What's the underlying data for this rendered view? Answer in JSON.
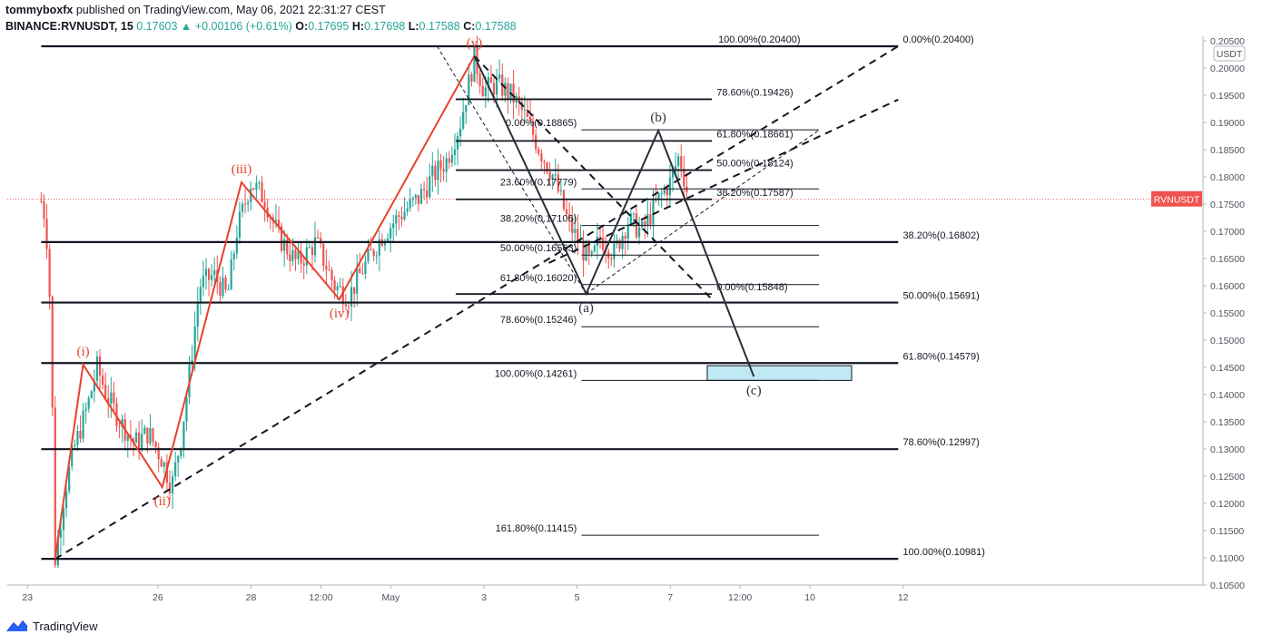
{
  "header": {
    "author": "tommyboxfx",
    "published": "published on TradingView.com, May 06, 2021 22:31:27 CEST",
    "symbol": "BINANCE:RVNUSDT, 15",
    "last": "0.17603",
    "change_arrow": "▲",
    "change": "+0.00106 (+0.61%)",
    "o_label": "O:",
    "o": "0.17695",
    "h_label": "H:",
    "h": "0.17698",
    "l_label": "L:",
    "l": "0.17588",
    "c_label": "C:",
    "c": "0.17588"
  },
  "footer": {
    "brand": "TradingView",
    "icon": "tradingview-logo-icon"
  },
  "colors": {
    "up": "#26a69a",
    "down": "#ef5350",
    "wave": "#e8412c",
    "price_tag": "#ef5350",
    "box": "#bfe9f3"
  },
  "chart_data": {
    "type": "line",
    "title": "BINANCE:RVNUSDT, 15",
    "currency": "USDT",
    "current_price_label": "RVNUSDT",
    "current_price": 0.17588,
    "ylim": [
      0.105,
      0.205
    ],
    "y_ticks": [
      0.105,
      0.11,
      0.115,
      0.12,
      0.125,
      0.13,
      0.135,
      0.14,
      0.145,
      0.15,
      0.155,
      0.16,
      0.165,
      0.17,
      0.175,
      0.18,
      0.185,
      0.19,
      0.195,
      0.2,
      0.205
    ],
    "y_tick_labels": [
      "0.10500",
      "0.11000",
      "0.11500",
      "0.12000",
      "0.12500",
      "0.13000",
      "0.13500",
      "0.14000",
      "0.14500",
      "0.15000",
      "0.15500",
      "0.16000",
      "0.16500",
      "0.17000",
      "0.17500",
      "0.18000",
      "0.18500",
      "0.19000",
      "0.19500",
      "0.20000",
      "0.20500"
    ],
    "x_tick_labels": [
      "23",
      "26",
      "28",
      "12:00",
      "May",
      "3",
      "5",
      "7",
      "12:00",
      "10",
      "12"
    ],
    "x_tick_positions": [
      0.2,
      3.0,
      5.0,
      6.5,
      8.0,
      10.0,
      12.0,
      14.0,
      15.5,
      17.0,
      19.0
    ],
    "price_path": [
      [
        0.3,
        0.1755
      ],
      [
        0.4,
        0.172
      ],
      [
        0.5,
        0.155
      ],
      [
        0.6,
        0.1098
      ],
      [
        0.8,
        0.122
      ],
      [
        1.0,
        0.13
      ],
      [
        1.3,
        0.138
      ],
      [
        1.5,
        0.145
      ],
      [
        1.7,
        0.14
      ],
      [
        2.0,
        0.135
      ],
      [
        2.3,
        0.131
      ],
      [
        2.6,
        0.133
      ],
      [
        2.9,
        0.128
      ],
      [
        3.1,
        0.123
      ],
      [
        3.3,
        0.132
      ],
      [
        3.5,
        0.145
      ],
      [
        3.7,
        0.16
      ],
      [
        4.0,
        0.162
      ],
      [
        4.3,
        0.158
      ],
      [
        4.5,
        0.17
      ],
      [
        4.8,
        0.179
      ],
      [
        5.1,
        0.176
      ],
      [
        5.4,
        0.169
      ],
      [
        5.8,
        0.164
      ],
      [
        6.2,
        0.168
      ],
      [
        6.6,
        0.16
      ],
      [
        6.9,
        0.158
      ],
      [
        7.2,
        0.163
      ],
      [
        7.6,
        0.169
      ],
      [
        8.0,
        0.173
      ],
      [
        8.4,
        0.176
      ],
      [
        8.7,
        0.18
      ],
      [
        9.0,
        0.183
      ],
      [
        9.3,
        0.19
      ],
      [
        9.6,
        0.202
      ],
      [
        9.8,
        0.196
      ],
      [
        10.1,
        0.197
      ],
      [
        10.4,
        0.195
      ],
      [
        10.7,
        0.191
      ],
      [
        11.0,
        0.185
      ],
      [
        11.3,
        0.18
      ],
      [
        11.6,
        0.172
      ],
      [
        11.9,
        0.167
      ],
      [
        12.1,
        0.164
      ],
      [
        12.3,
        0.169
      ],
      [
        12.6,
        0.166
      ],
      [
        12.9,
        0.172
      ],
      [
        13.2,
        0.17
      ],
      [
        13.5,
        0.175
      ],
      [
        13.8,
        0.179
      ],
      [
        14.0,
        0.184
      ],
      [
        14.2,
        0.176
      ]
    ],
    "candle_noise": 0.0022,
    "fib_levels": [
      {
        "label": "0.00%(0.20400)",
        "x0": 0.3,
        "x1": 18.7,
        "y": 0.204,
        "lw": 2.2,
        "lx": 18.8,
        "align": "start"
      },
      {
        "label": "100.00%(0.20400)",
        "lx": 16.6,
        "y": 0.204,
        "align": "end"
      },
      {
        "label": "38.20%(0.16802)",
        "x0": 0.3,
        "x1": 18.7,
        "y": 0.16802,
        "lw": 2.2,
        "lx": 18.8,
        "align": "start"
      },
      {
        "label": "50.00%(0.15691)",
        "x0": 0.3,
        "x1": 18.7,
        "y": 0.15691,
        "lw": 2.2,
        "lx": 18.8,
        "align": "start"
      },
      {
        "label": "61.80%(0.14579)",
        "x0": 0.3,
        "x1": 18.7,
        "y": 0.14579,
        "lw": 2.2,
        "lx": 18.8,
        "align": "start"
      },
      {
        "label": "78.60%(0.12997)",
        "x0": 0.3,
        "x1": 18.7,
        "y": 0.12997,
        "lw": 2.2,
        "lx": 18.8,
        "align": "start"
      },
      {
        "label": "100.00%(0.10981)",
        "x0": 0.3,
        "x1": 18.7,
        "y": 0.10981,
        "lw": 2.2,
        "lx": 18.8,
        "align": "start"
      },
      {
        "label": "78.60%(0.19426)",
        "x0": 9.2,
        "x1": 14.7,
        "y": 0.19426,
        "lw": 1.8,
        "lx": 14.8,
        "align": "start"
      },
      {
        "label": "61.80%(0.18661)",
        "x0": 9.2,
        "x1": 14.7,
        "y": 0.18661,
        "lw": 1.8,
        "lx": 14.8,
        "align": "start"
      },
      {
        "label": "50.00%(0.18124)",
        "x0": 9.2,
        "x1": 14.7,
        "y": 0.18124,
        "lw": 1.8,
        "lx": 14.8,
        "align": "start"
      },
      {
        "label": "38.20%(0.17587)",
        "x0": 9.2,
        "x1": 14.7,
        "y": 0.17587,
        "lw": 1.8,
        "lx": 14.8,
        "align": "start"
      },
      {
        "label": "0.00%(0.15848)",
        "x0": 9.2,
        "x1": 14.7,
        "y": 0.15848,
        "lw": 1.8,
        "lx": 14.8,
        "align": "start"
      },
      {
        "label": "0.00%(0.18865)",
        "x0": 11.9,
        "x1": 17.0,
        "y": 0.18865,
        "lw": 1.0,
        "lx": 11.8,
        "align": "end"
      },
      {
        "label": "23.60%(0.17779)",
        "x0": 11.9,
        "x1": 17.0,
        "y": 0.17779,
        "lw": 1.0,
        "lx": 11.8,
        "align": "end"
      },
      {
        "label": "38.20%(0.17106)",
        "x0": 11.9,
        "x1": 17.0,
        "y": 0.17106,
        "lw": 1.0,
        "lx": 11.8,
        "align": "end"
      },
      {
        "label": "50.00%(0.16563)",
        "x0": 11.9,
        "x1": 17.0,
        "y": 0.16563,
        "lw": 1.0,
        "lx": 11.8,
        "align": "end"
      },
      {
        "label": "61.80%(0.16020)",
        "x0": 11.9,
        "x1": 17.0,
        "y": 0.1602,
        "lw": 1.0,
        "lx": 11.8,
        "align": "end"
      },
      {
        "label": "78.60%(0.15246)",
        "x0": 11.9,
        "x1": 17.0,
        "y": 0.15246,
        "lw": 1.0,
        "lx": 11.8,
        "align": "end"
      },
      {
        "label": "100.00%(0.14261)",
        "x0": 11.9,
        "x1": 17.0,
        "y": 0.14261,
        "lw": 1.0,
        "lx": 11.8,
        "align": "end"
      },
      {
        "label": "161.80%(0.11415)",
        "x0": 11.9,
        "x1": 17.0,
        "y": 0.11415,
        "lw": 1.0,
        "lx": 11.8,
        "align": "end"
      }
    ],
    "impulse_wave": {
      "points": [
        [
          0.6,
          0.1098
        ],
        [
          1.2,
          0.1455
        ],
        [
          2.9,
          0.123
        ],
        [
          4.6,
          0.179
        ],
        [
          6.7,
          0.1575
        ],
        [
          9.6,
          0.2022
        ]
      ],
      "labels": [
        {
          "text": "(i)",
          "x": 1.2,
          "y": 0.1455,
          "pos": "above"
        },
        {
          "text": "(ii)",
          "x": 2.9,
          "y": 0.123,
          "pos": "below"
        },
        {
          "text": "(iii)",
          "x": 4.6,
          "y": 0.179,
          "pos": "above"
        },
        {
          "text": "(iv)",
          "x": 6.7,
          "y": 0.1575,
          "pos": "below"
        },
        {
          "text": "(v)",
          "x": 9.6,
          "y": 0.2022,
          "pos": "above"
        }
      ]
    },
    "corrective_wave": {
      "points": [
        [
          9.6,
          0.2022
        ],
        [
          12.0,
          0.1585
        ],
        [
          13.55,
          0.1885
        ],
        [
          15.6,
          0.1433
        ]
      ],
      "labels": [
        {
          "text": "(a)",
          "x": 12.0,
          "y": 0.1585,
          "pos": "below"
        },
        {
          "text": "(b)",
          "x": 13.55,
          "y": 0.1885,
          "pos": "above"
        },
        {
          "text": "(c)",
          "x": 15.6,
          "y": 0.1433,
          "pos": "below"
        }
      ]
    },
    "dashed_lines": [
      {
        "x0": 0.6,
        "y0": 0.1098,
        "x1": 18.7,
        "y1": 0.204,
        "w": 2
      },
      {
        "x0": 11.2,
        "y0": 0.1642,
        "x1": 18.7,
        "y1": 0.1942,
        "w": 2
      },
      {
        "x0": 9.6,
        "y0": 0.2022,
        "x1": 14.7,
        "y1": 0.1575,
        "w": 2
      },
      {
        "x0": 8.8,
        "y0": 0.204,
        "x1": 12.0,
        "y1": 0.1585,
        "w": 1
      },
      {
        "x0": 12.0,
        "y0": 0.1585,
        "x1": 17.0,
        "y1": 0.1886,
        "w": 1
      }
    ],
    "target_zone": {
      "x0": 14.6,
      "x1": 17.7,
      "y0": 0.1426,
      "y1": 0.1453
    }
  }
}
